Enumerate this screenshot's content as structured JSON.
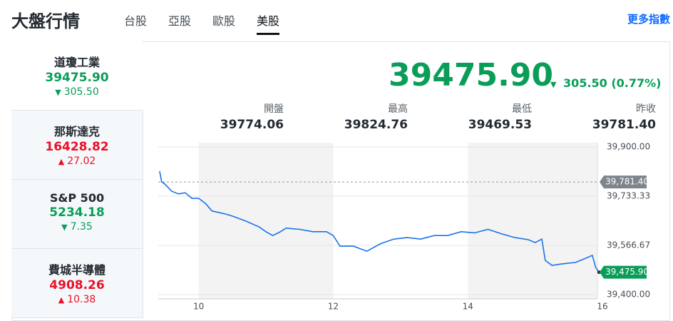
{
  "header": {
    "title": "大盤行情",
    "tabs": [
      "台股",
      "亞股",
      "歐股",
      "美股"
    ],
    "more_link": "更多指數"
  },
  "indices": [
    {
      "name": "道瓊工業",
      "price": "39475.90",
      "change": "305.50",
      "direction": "down"
    },
    {
      "name": "那斯達克",
      "price": "16428.82",
      "change": "27.02",
      "direction": "up"
    },
    {
      "name": "S&P 500",
      "price": "5234.18",
      "change": "7.35",
      "direction": "down"
    },
    {
      "name": "費城半導體",
      "price": "4908.26",
      "change": "10.38",
      "direction": "up"
    }
  ],
  "quote": {
    "price": "39475.90",
    "change": "305.50 (0.77%)",
    "stats": [
      {
        "label": "開盤",
        "value": "39774.06"
      },
      {
        "label": "最高",
        "value": "39824.76"
      },
      {
        "label": "最低",
        "value": "39469.53"
      },
      {
        "label": "昨收",
        "value": "39781.40"
      }
    ]
  },
  "chart_data": {
    "type": "line",
    "x": [
      9.42,
      9.45,
      9.5,
      9.6,
      9.7,
      9.8,
      9.9,
      10.0,
      10.1,
      10.2,
      10.4,
      10.5,
      10.7,
      10.9,
      11.0,
      11.1,
      11.2,
      11.3,
      11.5,
      11.7,
      11.9,
      12.0,
      12.1,
      12.3,
      12.5,
      12.7,
      12.9,
      13.1,
      13.3,
      13.5,
      13.7,
      13.9,
      14.1,
      14.3,
      14.5,
      14.7,
      14.9,
      15.0,
      15.1,
      15.15,
      15.25,
      15.4,
      15.6,
      15.75,
      15.85,
      15.9,
      15.95
    ],
    "series": [
      {
        "name": "道瓊工業",
        "color": "#1a73e8",
        "values": [
          39818,
          39782,
          39774,
          39750,
          39741,
          39745,
          39726,
          39726,
          39709,
          39683,
          39673,
          39666,
          39649,
          39629,
          39613,
          39600,
          39611,
          39625,
          39621,
          39613,
          39613,
          39600,
          39564,
          39564,
          39547,
          39572,
          39588,
          39593,
          39588,
          39600,
          39600,
          39613,
          39609,
          39621,
          39606,
          39593,
          39586,
          39576,
          39588,
          39516,
          39499,
          39504,
          39509,
          39523,
          39533,
          39492,
          39475.9
        ]
      }
    ],
    "xlim": [
      9.4,
      16
    ],
    "xticks": [
      10,
      12,
      14,
      16
    ],
    "ylim": [
      39400,
      39900
    ],
    "yticks": [
      {
        "value": 39900,
        "label": "39,900.00"
      },
      {
        "value": 39733.33,
        "label": "39,733.33"
      },
      {
        "value": 39566.67,
        "label": "39,566.67"
      },
      {
        "value": 39400,
        "label": "39,400.00"
      }
    ],
    "reference_line": {
      "value": 39781.4,
      "label": "39,781.40"
    },
    "last_label": "39,475.90",
    "grid": true
  }
}
